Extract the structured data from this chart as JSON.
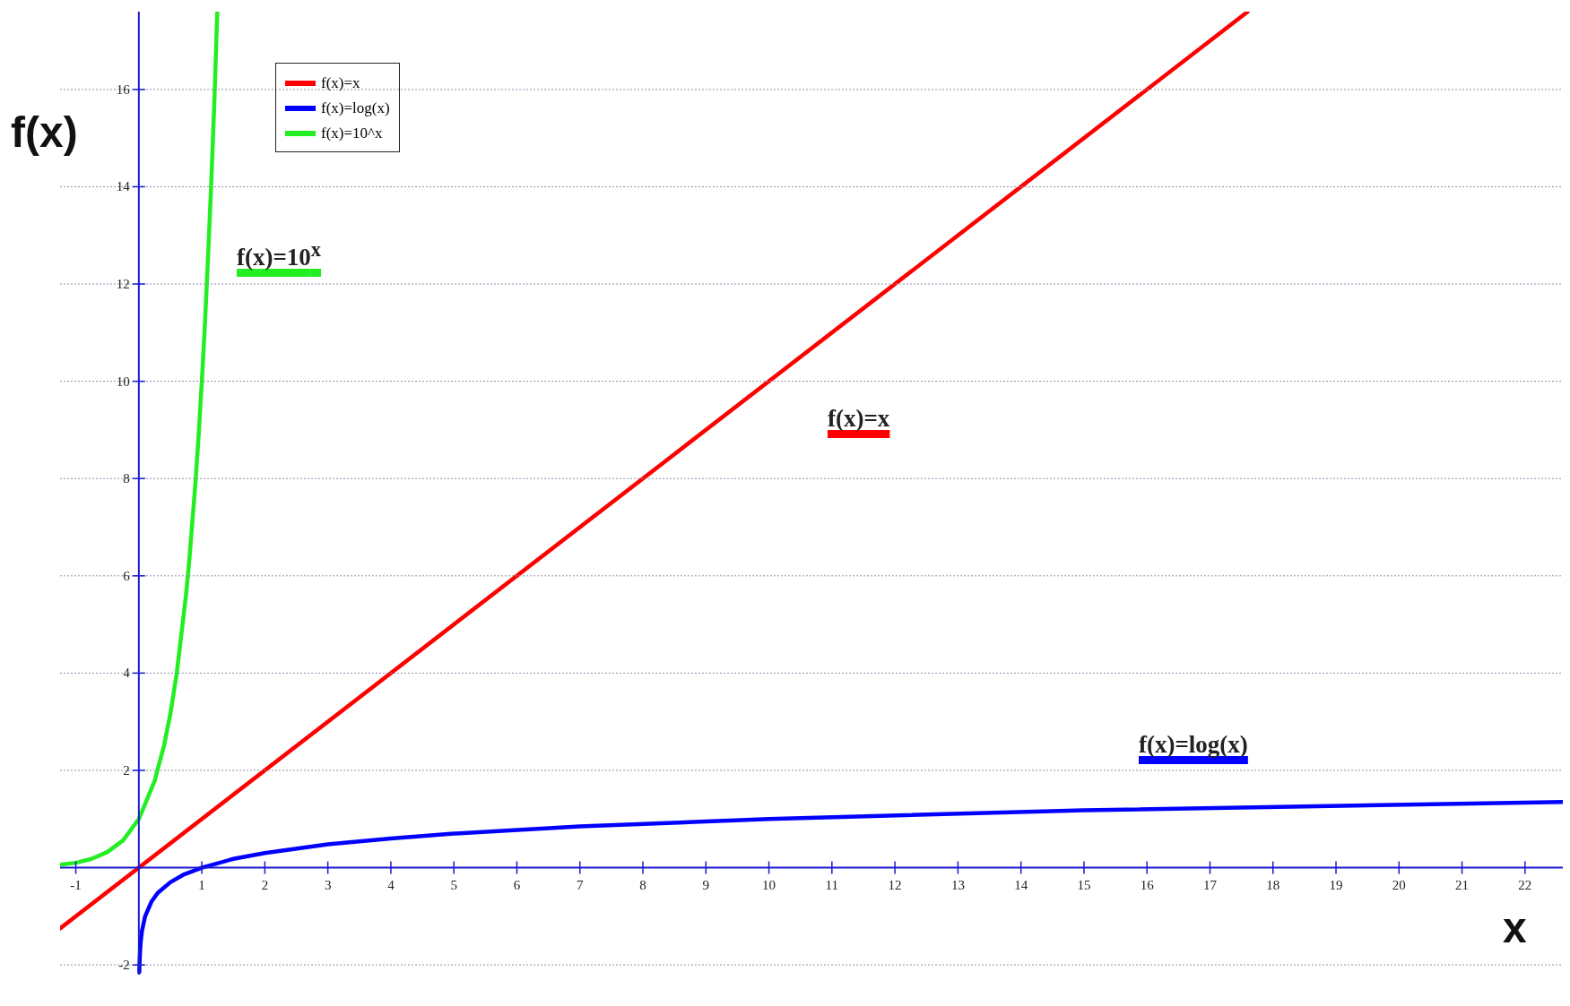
{
  "chart_data": {
    "type": "line",
    "xlabel": "x",
    "ylabel": "f(x)",
    "xlim": [
      -1.25,
      22.6
    ],
    "ylim": [
      -2.2,
      17.6
    ],
    "xticks": [
      -1,
      1,
      2,
      3,
      4,
      5,
      6,
      7,
      8,
      9,
      10,
      11,
      12,
      13,
      14,
      15,
      16,
      17,
      18,
      19,
      20,
      21,
      22
    ],
    "yticks": [
      -2,
      2,
      4,
      6,
      8,
      10,
      12,
      14,
      16
    ],
    "grid": "y",
    "legend": "top left",
    "marker": "none",
    "line_style": "solid",
    "series": [
      {
        "name": "f(x)=x",
        "color": "#ff0000",
        "x": [
          -1.25,
          17.6
        ],
        "values": [
          -1.25,
          17.6
        ]
      },
      {
        "name": "f(x)=log(x)",
        "color": "#0000ff",
        "x": [
          0.007,
          0.01,
          0.02,
          0.03,
          0.05,
          0.1,
          0.2,
          0.3,
          0.5,
          0.7,
          1,
          1.5,
          2,
          3,
          4,
          5,
          7,
          10,
          15,
          22.6
        ],
        "values": [
          -2.15,
          -2,
          -1.7,
          -1.52,
          -1.3,
          -1,
          -0.7,
          -0.52,
          -0.3,
          -0.15,
          0,
          0.18,
          0.3,
          0.48,
          0.6,
          0.7,
          0.85,
          1,
          1.18,
          1.35
        ]
      },
      {
        "name": "f(x)=10^x",
        "color": "#22ee22",
        "x": [
          -1.25,
          -1,
          -0.75,
          -0.5,
          -0.25,
          0,
          0.25,
          0.4,
          0.5,
          0.6,
          0.75,
          0.8,
          0.9,
          0.95,
          1,
          1.05,
          1.1,
          1.15,
          1.2,
          1.245
        ],
        "values": [
          0.06,
          0.1,
          0.18,
          0.32,
          0.56,
          1,
          1.78,
          2.51,
          3.16,
          3.98,
          5.62,
          6.31,
          7.94,
          8.91,
          10,
          11.2,
          12.6,
          14.1,
          15.8,
          17.6
        ]
      }
    ],
    "annotations": [
      "f(x)=x",
      "f(x)=log(x)",
      "f(x)=10$^{x}$"
    ]
  }
}
